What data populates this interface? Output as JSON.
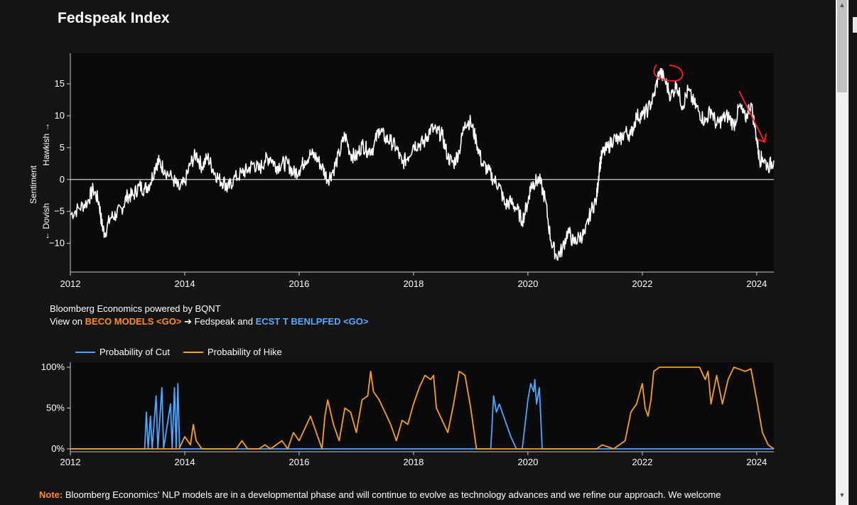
{
  "page": {
    "title": "Fedspeak Index"
  },
  "credit": {
    "line1": "Bloomberg Economics powered by BQNT",
    "line2_prefix": "View on ",
    "link1": "BECO MODELS <GO>",
    "arrow": " ➔ Fedspeak and ",
    "link2": "ECST T BENLPFED <GO>"
  },
  "note": {
    "label": "Note:",
    "text": " Bloomberg Economics' NLP models are in a developmental phase and will continue to evolve as technology advances and we refine our approach. We welcome"
  },
  "colors": {
    "background": "#141414",
    "plot_background": "#0a0a0a",
    "index_line": "#ffffff",
    "cut_series": "#4da6ff",
    "hike_series": "#f5a020",
    "annotation": "#ff2020",
    "link_orange": "#ff8c1a",
    "link_blue": "#5aaaff"
  },
  "chart_data": [
    {
      "type": "line",
      "title": "Fedspeak Index",
      "ylabel": "Sentiment",
      "ylabel_hawkish": "Hawkish →",
      "ylabel_dovish": "← Dovish",
      "xlim": [
        2012.0,
        2024.3
      ],
      "ylim": [
        -14.5,
        19.8
      ],
      "x_ticks": [
        2012,
        2014,
        2016,
        2018,
        2020,
        2022,
        2024
      ],
      "y_ticks": [
        15,
        10,
        5,
        0,
        -5,
        -10
      ],
      "y_tick_labels": [
        "15",
        "10",
        "5",
        "0",
        "−5",
        "−10"
      ],
      "grid": false,
      "zero_line": true,
      "series": [
        {
          "points": [
            [
              2012.0,
              -5.5
            ],
            [
              2012.15,
              -4.5
            ],
            [
              2012.3,
              -3.5
            ],
            [
              2012.4,
              -1.5
            ],
            [
              2012.5,
              -3.5
            ],
            [
              2012.55,
              -7
            ],
            [
              2012.6,
              -8.5
            ],
            [
              2012.7,
              -6
            ],
            [
              2012.8,
              -5.5
            ],
            [
              2012.9,
              -4.5
            ],
            [
              2013.0,
              -2.5
            ],
            [
              2013.1,
              -2.5
            ],
            [
              2013.2,
              -1
            ],
            [
              2013.3,
              -1.5
            ],
            [
              2013.4,
              -0.5
            ],
            [
              2013.5,
              2.5
            ],
            [
              2013.55,
              2.8
            ],
            [
              2013.65,
              1.5
            ],
            [
              2013.8,
              0
            ],
            [
              2013.9,
              -1.5
            ],
            [
              2014.0,
              -0.5
            ],
            [
              2014.1,
              2.5
            ],
            [
              2014.2,
              4
            ],
            [
              2014.3,
              2
            ],
            [
              2014.4,
              3.5
            ],
            [
              2014.5,
              1.5
            ],
            [
              2014.6,
              0
            ],
            [
              2014.7,
              -0.5
            ],
            [
              2014.75,
              -1.5
            ],
            [
              2014.85,
              0
            ],
            [
              2015.0,
              1
            ],
            [
              2015.1,
              1.5
            ],
            [
              2015.2,
              2.5
            ],
            [
              2015.3,
              1.5
            ],
            [
              2015.4,
              3
            ],
            [
              2015.5,
              3.5
            ],
            [
              2015.6,
              2
            ],
            [
              2015.7,
              2.5
            ],
            [
              2015.8,
              2.5
            ],
            [
              2015.9,
              1
            ],
            [
              2016.0,
              1.5
            ],
            [
              2016.1,
              3
            ],
            [
              2016.2,
              4
            ],
            [
              2016.3,
              3.5
            ],
            [
              2016.4,
              2
            ],
            [
              2016.5,
              0
            ],
            [
              2016.6,
              1.5
            ],
            [
              2016.7,
              4
            ],
            [
              2016.8,
              7
            ],
            [
              2016.9,
              4
            ],
            [
              2017.0,
              3.5
            ],
            [
              2017.1,
              5.5
            ],
            [
              2017.2,
              4.5
            ],
            [
              2017.3,
              5
            ],
            [
              2017.4,
              8
            ],
            [
              2017.5,
              6.5
            ],
            [
              2017.6,
              6
            ],
            [
              2017.7,
              5
            ],
            [
              2017.8,
              2.5
            ],
            [
              2017.9,
              3.5
            ],
            [
              2018.0,
              5.5
            ],
            [
              2018.1,
              5.5
            ],
            [
              2018.2,
              6
            ],
            [
              2018.3,
              8
            ],
            [
              2018.4,
              7.5
            ],
            [
              2018.5,
              7
            ],
            [
              2018.6,
              3.5
            ],
            [
              2018.7,
              2.5
            ],
            [
              2018.8,
              4.5
            ],
            [
              2018.9,
              9
            ],
            [
              2019.0,
              9
            ],
            [
              2019.1,
              6
            ],
            [
              2019.2,
              2.5
            ],
            [
              2019.3,
              1.5
            ],
            [
              2019.4,
              0
            ],
            [
              2019.5,
              -1
            ],
            [
              2019.6,
              -4
            ],
            [
              2019.7,
              -3.5
            ],
            [
              2019.8,
              -4.5
            ],
            [
              2019.9,
              -6.5
            ],
            [
              2020.0,
              -3.5
            ],
            [
              2020.05,
              -1
            ],
            [
              2020.1,
              -0.5
            ],
            [
              2020.2,
              0
            ],
            [
              2020.3,
              -3
            ],
            [
              2020.4,
              -9.5
            ],
            [
              2020.5,
              -12
            ],
            [
              2020.6,
              -11
            ],
            [
              2020.7,
              -8
            ],
            [
              2020.8,
              -10
            ],
            [
              2020.9,
              -9
            ],
            [
              2021.0,
              -8.5
            ],
            [
              2021.1,
              -5
            ],
            [
              2021.2,
              -3
            ],
            [
              2021.25,
              2
            ],
            [
              2021.3,
              4
            ],
            [
              2021.4,
              5
            ],
            [
              2021.5,
              6.5
            ],
            [
              2021.6,
              6
            ],
            [
              2021.7,
              7.5
            ],
            [
              2021.8,
              7
            ],
            [
              2021.9,
              10
            ],
            [
              2022.0,
              10
            ],
            [
              2022.1,
              11
            ],
            [
              2022.2,
              13
            ],
            [
              2022.3,
              17
            ],
            [
              2022.4,
              15.5
            ],
            [
              2022.5,
              13
            ],
            [
              2022.6,
              15
            ],
            [
              2022.7,
              11.5
            ],
            [
              2022.8,
              14
            ],
            [
              2022.9,
              12
            ],
            [
              2023.0,
              10.5
            ],
            [
              2023.1,
              9
            ],
            [
              2023.2,
              11
            ],
            [
              2023.3,
              8.5
            ],
            [
              2023.4,
              9.5
            ],
            [
              2023.5,
              10
            ],
            [
              2023.6,
              8.5
            ],
            [
              2023.7,
              11.5
            ],
            [
              2023.8,
              9.5
            ],
            [
              2023.9,
              12
            ],
            [
              2024.0,
              6.5
            ],
            [
              2024.05,
              3
            ],
            [
              2024.1,
              3.5
            ],
            [
              2024.2,
              2
            ],
            [
              2024.3,
              3
            ]
          ]
        }
      ]
    },
    {
      "type": "line",
      "legend": [
        "Probability of Cut",
        "Probability of Hike"
      ],
      "legend_placement": "top-left",
      "xlim": [
        2012.0,
        2024.3
      ],
      "ylim": [
        0,
        100
      ],
      "x_ticks": [
        2012,
        2014,
        2016,
        2018,
        2020,
        2022,
        2024
      ],
      "y_ticks": [
        100,
        50,
        0
      ],
      "y_tick_labels": [
        "100%",
        "50%",
        "0%"
      ],
      "series": [
        {
          "name": "Probability of Cut",
          "color": "#4da6ff",
          "points": [
            [
              2012.0,
              0
            ],
            [
              2013.3,
              0
            ],
            [
              2013.33,
              45
            ],
            [
              2013.36,
              0
            ],
            [
              2013.4,
              40
            ],
            [
              2013.43,
              0
            ],
            [
              2013.5,
              65
            ],
            [
              2013.53,
              0
            ],
            [
              2013.6,
              75
            ],
            [
              2013.63,
              0
            ],
            [
              2013.75,
              55
            ],
            [
              2013.78,
              0
            ],
            [
              2013.82,
              75
            ],
            [
              2013.85,
              0
            ],
            [
              2013.88,
              80
            ],
            [
              2013.91,
              0
            ],
            [
              2019.35,
              0
            ],
            [
              2019.4,
              65
            ],
            [
              2019.45,
              45
            ],
            [
              2019.5,
              55
            ],
            [
              2019.6,
              35
            ],
            [
              2019.7,
              15
            ],
            [
              2019.8,
              0
            ],
            [
              2019.9,
              0
            ],
            [
              2020.0,
              60
            ],
            [
              2020.05,
              80
            ],
            [
              2020.1,
              70
            ],
            [
              2020.12,
              85
            ],
            [
              2020.15,
              55
            ],
            [
              2020.2,
              75
            ],
            [
              2020.25,
              0
            ],
            [
              2024.3,
              0
            ]
          ]
        },
        {
          "name": "Probability of Hike",
          "color": "#f5a020",
          "points": [
            [
              2012.0,
              0
            ],
            [
              2013.9,
              0
            ],
            [
              2014.0,
              15
            ],
            [
              2014.1,
              5
            ],
            [
              2014.15,
              30
            ],
            [
              2014.2,
              10
            ],
            [
              2014.3,
              0
            ],
            [
              2014.9,
              0
            ],
            [
              2015.0,
              10
            ],
            [
              2015.1,
              0
            ],
            [
              2015.3,
              0
            ],
            [
              2015.4,
              5
            ],
            [
              2015.5,
              0
            ],
            [
              2015.7,
              10
            ],
            [
              2015.8,
              0
            ],
            [
              2015.9,
              20
            ],
            [
              2016.0,
              10
            ],
            [
              2016.1,
              25
            ],
            [
              2016.2,
              40
            ],
            [
              2016.3,
              20
            ],
            [
              2016.4,
              0
            ],
            [
              2016.45,
              40
            ],
            [
              2016.5,
              60
            ],
            [
              2016.6,
              30
            ],
            [
              2016.7,
              10
            ],
            [
              2016.8,
              50
            ],
            [
              2016.9,
              45
            ],
            [
              2017.0,
              20
            ],
            [
              2017.1,
              60
            ],
            [
              2017.2,
              65
            ],
            [
              2017.25,
              95
            ],
            [
              2017.3,
              70
            ],
            [
              2017.4,
              60
            ],
            [
              2017.5,
              45
            ],
            [
              2017.6,
              30
            ],
            [
              2017.7,
              10
            ],
            [
              2017.8,
              35
            ],
            [
              2017.9,
              30
            ],
            [
              2018.0,
              55
            ],
            [
              2018.1,
              75
            ],
            [
              2018.2,
              90
            ],
            [
              2018.3,
              85
            ],
            [
              2018.35,
              90
            ],
            [
              2018.4,
              50
            ],
            [
              2018.5,
              35
            ],
            [
              2018.6,
              20
            ],
            [
              2018.7,
              55
            ],
            [
              2018.8,
              95
            ],
            [
              2018.9,
              90
            ],
            [
              2019.0,
              50
            ],
            [
              2019.1,
              0
            ],
            [
              2020.0,
              0
            ],
            [
              2020.3,
              0
            ],
            [
              2020.8,
              0
            ],
            [
              2021.2,
              0
            ],
            [
              2021.3,
              5
            ],
            [
              2021.5,
              0
            ],
            [
              2021.7,
              10
            ],
            [
              2021.8,
              45
            ],
            [
              2021.9,
              55
            ],
            [
              2022.0,
              80
            ],
            [
              2022.05,
              50
            ],
            [
              2022.1,
              40
            ],
            [
              2022.15,
              60
            ],
            [
              2022.2,
              95
            ],
            [
              2022.3,
              100
            ],
            [
              2022.5,
              100
            ],
            [
              2023.0,
              100
            ],
            [
              2023.1,
              85
            ],
            [
              2023.15,
              95
            ],
            [
              2023.2,
              55
            ],
            [
              2023.3,
              90
            ],
            [
              2023.4,
              55
            ],
            [
              2023.5,
              85
            ],
            [
              2023.6,
              100
            ],
            [
              2023.8,
              95
            ],
            [
              2023.9,
              98
            ],
            [
              2024.0,
              60
            ],
            [
              2024.1,
              20
            ],
            [
              2024.2,
              5
            ],
            [
              2024.3,
              0
            ]
          ]
        }
      ]
    }
  ]
}
